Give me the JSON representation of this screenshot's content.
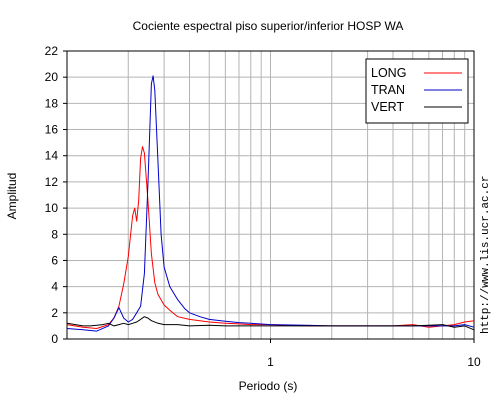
{
  "chart_data": {
    "type": "line",
    "title": "Cociente espectral piso superior/inferior  HOSP WA",
    "xlabel": "Periodo (s)",
    "ylabel": "Amplitud",
    "x_scale": "log",
    "xlim": [
      0.1,
      10
    ],
    "ylim": [
      0,
      22
    ],
    "x_ticks": [
      "1",
      "10"
    ],
    "y_ticks": [
      "0",
      "2",
      "4",
      "6",
      "8",
      "10",
      "12",
      "14",
      "16",
      "18",
      "20",
      "22"
    ],
    "grid": true,
    "legend_position": "top-right",
    "credit": "http://www.lis.ucr.ac.cr",
    "series": [
      {
        "name": "LONG",
        "color": "#ff0000",
        "x": [
          0.1,
          0.12,
          0.14,
          0.16,
          0.17,
          0.18,
          0.19,
          0.2,
          0.21,
          0.215,
          0.22,
          0.225,
          0.23,
          0.235,
          0.24,
          0.25,
          0.26,
          0.27,
          0.28,
          0.3,
          0.32,
          0.35,
          0.4,
          0.5,
          0.6,
          0.7,
          0.8,
          1.0,
          1.5,
          2.0,
          3.0,
          4.0,
          5.0,
          6.0,
          7.0,
          8.0,
          9.0,
          10.0
        ],
        "y": [
          1.1,
          0.9,
          0.8,
          1.1,
          1.6,
          2.5,
          4.2,
          6.3,
          9.4,
          10.0,
          9.0,
          10.6,
          13.8,
          14.7,
          14.2,
          10.5,
          6.5,
          4.3,
          3.4,
          2.6,
          2.2,
          1.7,
          1.5,
          1.3,
          1.2,
          1.15,
          1.1,
          1.1,
          1.0,
          1.0,
          1.0,
          1.0,
          1.1,
          0.9,
          1.0,
          1.1,
          1.3,
          1.4
        ]
      },
      {
        "name": "TRAN",
        "color": "#0000cc",
        "x": [
          0.1,
          0.12,
          0.14,
          0.16,
          0.17,
          0.18,
          0.19,
          0.2,
          0.21,
          0.22,
          0.23,
          0.24,
          0.25,
          0.26,
          0.265,
          0.27,
          0.28,
          0.29,
          0.3,
          0.32,
          0.35,
          0.38,
          0.4,
          0.45,
          0.5,
          0.6,
          0.7,
          0.8,
          1.0,
          1.5,
          2.0,
          3.0,
          4.0,
          5.0,
          6.0,
          7.0,
          8.0,
          9.0,
          10.0
        ],
        "y": [
          0.8,
          0.7,
          0.6,
          1.0,
          1.6,
          2.4,
          1.6,
          1.3,
          1.5,
          2.0,
          2.5,
          5.0,
          12.0,
          19.5,
          20.1,
          19.0,
          13.5,
          8.0,
          5.5,
          4.0,
          3.0,
          2.3,
          2.0,
          1.7,
          1.5,
          1.35,
          1.25,
          1.2,
          1.1,
          1.05,
          1.0,
          1.0,
          1.0,
          1.0,
          1.0,
          1.0,
          1.0,
          1.1,
          0.9
        ]
      },
      {
        "name": "VERT",
        "color": "#000000",
        "x": [
          0.1,
          0.11,
          0.12,
          0.13,
          0.14,
          0.15,
          0.16,
          0.17,
          0.18,
          0.19,
          0.2,
          0.21,
          0.22,
          0.23,
          0.24,
          0.25,
          0.26,
          0.28,
          0.3,
          0.35,
          0.4,
          0.5,
          0.6,
          0.8,
          1.0,
          1.5,
          2.0,
          3.0,
          4.0,
          5.0,
          6.0,
          7.0,
          8.0,
          9.0,
          10.0
        ],
        "y": [
          1.2,
          1.1,
          1.0,
          1.0,
          1.05,
          1.1,
          1.2,
          1.0,
          1.1,
          1.2,
          1.1,
          1.2,
          1.3,
          1.5,
          1.7,
          1.6,
          1.4,
          1.2,
          1.1,
          1.1,
          1.0,
          1.05,
          1.0,
          1.0,
          1.0,
          1.0,
          1.0,
          1.0,
          1.0,
          1.0,
          1.05,
          1.1,
          0.9,
          1.0,
          0.7
        ]
      }
    ]
  }
}
